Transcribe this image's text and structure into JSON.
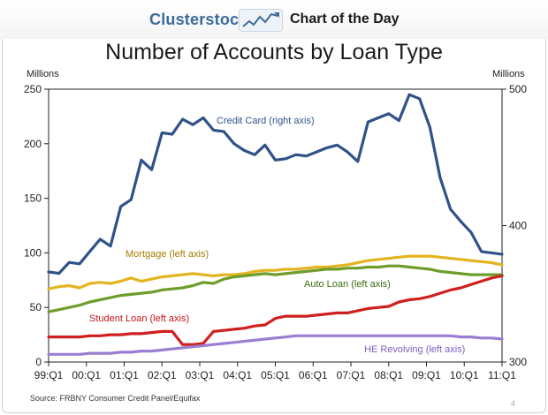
{
  "header": {
    "brand": "Clusterstock",
    "brand_icon": "rising-chart-icon",
    "tagline": "Chart of the Day"
  },
  "colors": {
    "brand": "#3d6b9a",
    "Credit Card (right axis)": "#2f5288",
    "Mortgage (left axis)": "#e4b521",
    "Auto Loan (left axis)": "#6f9d2c",
    "Student Loan (left axis)": "#d11f1f",
    "HE Revolving (left axis)": "#9b7ed1"
  },
  "footer": {
    "source": "Source: FRBNY Consumer Credit Panel/Equifax",
    "page_number": "4"
  },
  "chart_data": {
    "type": "line",
    "title": "Number of Accounts by Loan Type",
    "ylabel_left": "Millions",
    "ylabel_right": "Millions",
    "ylim_left": [
      0,
      250
    ],
    "yticks_left": [
      0,
      50,
      100,
      150,
      200,
      250
    ],
    "ylim_right": [
      300,
      500
    ],
    "yticks_right": [
      300,
      400,
      500
    ],
    "x_tick_labels": [
      "99:Q1",
      "00:Q1",
      "01:Q1",
      "02:Q1",
      "03:Q1",
      "04:Q1",
      "05:Q1",
      "06:Q1",
      "07:Q1",
      "08:Q1",
      "09:Q1",
      "10:Q1",
      "11:Q1"
    ],
    "x_start": "1999:Q1",
    "x_end": "2011:Q1",
    "grid": false,
    "legend": "labels beside lines",
    "series": [
      {
        "name": "Credit Card (right axis)",
        "axis": "right",
        "values": [
          366,
          365,
          373,
          372,
          381,
          390,
          385,
          414,
          419,
          448,
          441,
          468,
          467,
          478,
          474,
          479,
          470,
          469,
          460,
          455,
          452,
          459,
          448,
          449,
          452,
          451,
          454,
          457,
          459,
          454,
          447,
          476,
          479,
          482,
          477,
          496,
          493,
          472,
          435,
          412,
          403,
          395,
          381,
          380,
          379
        ]
      },
      {
        "name": "Mortgage (left axis)",
        "axis": "left",
        "values": [
          67,
          69,
          70,
          68,
          72,
          73,
          72,
          74,
          77,
          74,
          76,
          78,
          79,
          80,
          81,
          80,
          79,
          80,
          80,
          81,
          83,
          84,
          84,
          85,
          85,
          86,
          87,
          87,
          88,
          89,
          91,
          93,
          94,
          95,
          96,
          97,
          97,
          97,
          96,
          95,
          94,
          93,
          92,
          91,
          89
        ]
      },
      {
        "name": "Auto Loan (left axis)",
        "axis": "left",
        "values": [
          46,
          48,
          50,
          52,
          55,
          57,
          59,
          61,
          62,
          63,
          64,
          66,
          67,
          68,
          70,
          73,
          72,
          76,
          78,
          79,
          80,
          81,
          80,
          81,
          82,
          83,
          84,
          85,
          85,
          86,
          86,
          87,
          87,
          88,
          88,
          87,
          86,
          85,
          83,
          82,
          81,
          80,
          80,
          80,
          80
        ]
      },
      {
        "name": "Student Loan (left axis)",
        "axis": "left",
        "values": [
          23,
          23,
          23,
          23,
          24,
          24,
          25,
          25,
          26,
          26,
          27,
          28,
          28,
          16,
          16,
          17,
          28,
          29,
          30,
          31,
          33,
          34,
          40,
          42,
          42,
          42,
          43,
          44,
          45,
          45,
          47,
          49,
          50,
          51,
          55,
          57,
          58,
          60,
          63,
          66,
          68,
          71,
          74,
          77,
          79
        ]
      },
      {
        "name": "HE Revolving (left axis)",
        "axis": "left",
        "values": [
          7,
          7,
          7,
          7,
          8,
          8,
          8,
          9,
          9,
          10,
          10,
          11,
          12,
          13,
          14,
          15,
          16,
          17,
          18,
          19,
          20,
          21,
          22,
          23,
          24,
          24,
          24,
          24,
          24,
          24,
          24,
          24,
          24,
          24,
          24,
          24,
          24,
          24,
          24,
          24,
          23,
          23,
          22,
          22,
          21
        ]
      }
    ]
  }
}
